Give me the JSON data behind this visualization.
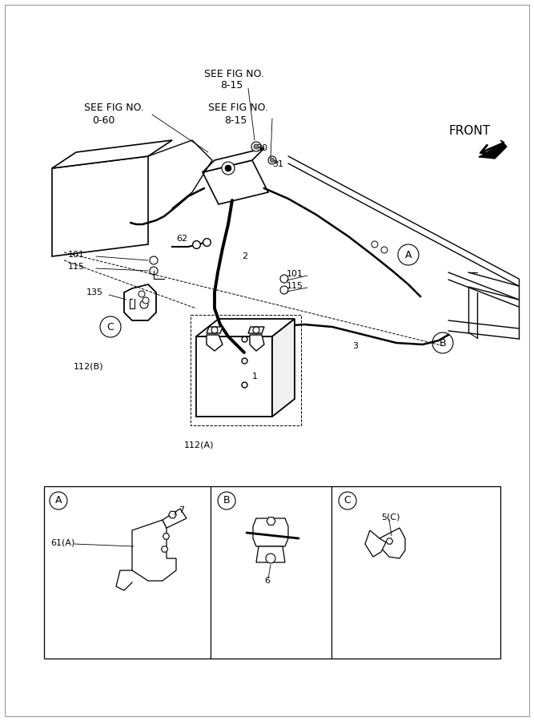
{
  "bg_color": "#ffffff",
  "line_color": "#000000",
  "font_family": "DejaVu Sans",
  "fig_width": 6.67,
  "fig_height": 9.0,
  "texts": {
    "see_fig_top1": "SEE FIG NO.",
    "see_fig_top1b": "8-15",
    "see_fig_left": "SEE FIG NO.",
    "see_fig_leftb": "0-60",
    "see_fig_mid": "SEE FIG NO.",
    "see_fig_midb": "8-15",
    "front": "FRONT",
    "n30": "30",
    "n31": "31",
    "n62": "62",
    "n101a": "101",
    "n115a": "115",
    "n135": "135",
    "n2": "2",
    "n101b": "101",
    "n115b": "115",
    "n3": "3",
    "n1": "1",
    "n112A": "112(A)",
    "n112B": "112(B)",
    "nA": "A",
    "nB": "B",
    "nC": "C",
    "n7": "7",
    "n61A": "61(A)",
    "n6": "6",
    "n5C": "5(C)"
  }
}
